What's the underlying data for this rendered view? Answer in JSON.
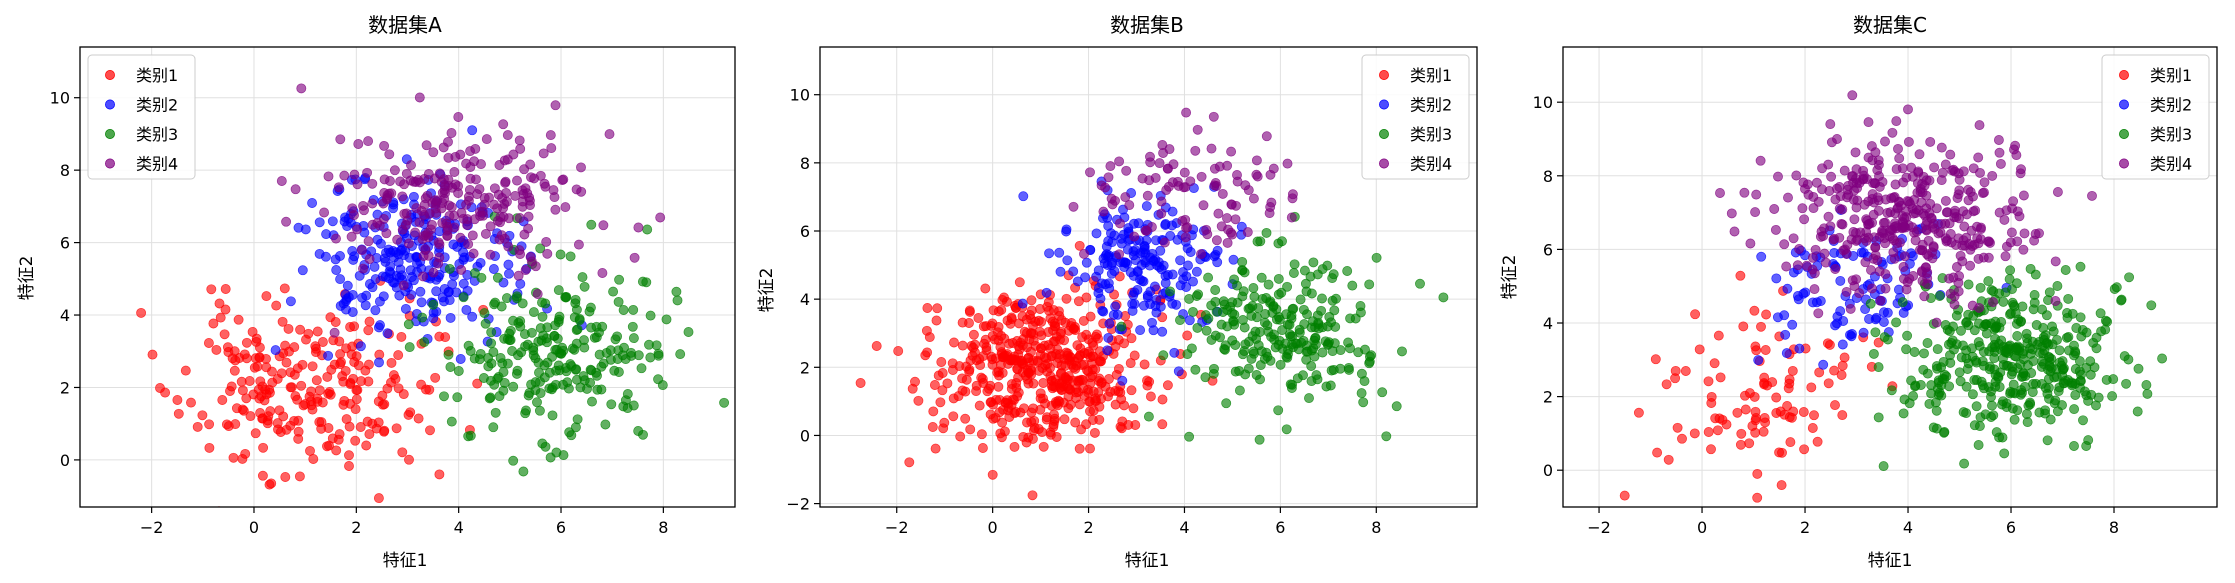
{
  "figure": {
    "axis_labels": {
      "xlabel": "特征1",
      "ylabel": "特征2"
    },
    "legend_labels": [
      "类别1",
      "类别2",
      "类别3",
      "类别4"
    ],
    "colors": {
      "类别1": "#ff0000",
      "类别2": "#0000ff",
      "类别3": "#008000",
      "类别4": "#800080"
    }
  },
  "chart_data": [
    {
      "type": "scatter",
      "title": "数据集A",
      "xlabel": "特征1",
      "ylabel": "特征2",
      "xlim": [
        -3.4,
        9.4
      ],
      "ylim": [
        -1.3,
        11.4
      ],
      "xticks": [
        -2,
        0,
        2,
        4,
        6,
        8
      ],
      "yticks": [
        0,
        2,
        4,
        6,
        8,
        10
      ],
      "grid": true,
      "legend": "top-left",
      "series": [
        {
          "name": "类别1",
          "color": "#ff0000",
          "center": [
            1.0,
            2.0
          ],
          "spread": [
            1.2,
            1.2
          ],
          "count": 250,
          "seed": 11
        },
        {
          "name": "类别2",
          "color": "#0000ff",
          "center": [
            3.0,
            5.5
          ],
          "spread": [
            1.0,
            1.1
          ],
          "count": 250,
          "seed": 23
        },
        {
          "name": "类别3",
          "color": "#008000",
          "center": [
            6.0,
            3.0
          ],
          "spread": [
            1.1,
            1.2
          ],
          "count": 250,
          "seed": 37
        },
        {
          "name": "类别4",
          "color": "#800080",
          "center": [
            4.0,
            7.2
          ],
          "spread": [
            1.2,
            1.1
          ],
          "count": 250,
          "seed": 41
        }
      ]
    },
    {
      "type": "scatter",
      "title": "数据集B",
      "xlabel": "特征1",
      "ylabel": "特征2",
      "xlim": [
        -3.6,
        10.1
      ],
      "ylim": [
        -2.1,
        11.4
      ],
      "xticks": [
        -2,
        0,
        2,
        4,
        6,
        8
      ],
      "yticks": [
        -2,
        0,
        2,
        4,
        6,
        8,
        10
      ],
      "grid": true,
      "legend": "top-right",
      "series": [
        {
          "name": "类别1",
          "color": "#ff0000",
          "center": [
            1.0,
            2.0
          ],
          "spread": [
            1.1,
            1.1
          ],
          "count": 500,
          "seed": 53
        },
        {
          "name": "类别2",
          "color": "#0000ff",
          "center": [
            3.0,
            5.0
          ],
          "spread": [
            0.9,
            1.0
          ],
          "count": 200,
          "seed": 61
        },
        {
          "name": "类别3",
          "color": "#008000",
          "center": [
            6.0,
            3.2
          ],
          "spread": [
            1.1,
            1.1
          ],
          "count": 250,
          "seed": 71
        },
        {
          "name": "类别4",
          "color": "#800080",
          "center": [
            4.0,
            7.2
          ],
          "spread": [
            1.1,
            1.0
          ],
          "count": 100,
          "seed": 83
        }
      ]
    },
    {
      "type": "scatter",
      "title": "数据集C",
      "xlabel": "特征1",
      "ylabel": "特征2",
      "xlim": [
        -2.7,
        10.0
      ],
      "ylim": [
        -1.0,
        11.5
      ],
      "xticks": [
        -2,
        0,
        2,
        4,
        6,
        8
      ],
      "yticks": [
        0,
        2,
        4,
        6,
        8,
        10
      ],
      "grid": true,
      "legend": "top-right",
      "series": [
        {
          "name": "类别1",
          "color": "#ff0000",
          "center": [
            1.0,
            2.0
          ],
          "spread": [
            1.1,
            1.2
          ],
          "count": 100,
          "seed": 97
        },
        {
          "name": "类别2",
          "color": "#0000ff",
          "center": [
            3.0,
            5.0
          ],
          "spread": [
            0.9,
            0.9
          ],
          "count": 100,
          "seed": 101
        },
        {
          "name": "类别3",
          "color": "#008000",
          "center": [
            6.0,
            3.0
          ],
          "spread": [
            1.1,
            1.1
          ],
          "count": 400,
          "seed": 113
        },
        {
          "name": "类别4",
          "color": "#800080",
          "center": [
            4.0,
            7.0
          ],
          "spread": [
            1.2,
            1.1
          ],
          "count": 400,
          "seed": 127
        }
      ]
    }
  ]
}
